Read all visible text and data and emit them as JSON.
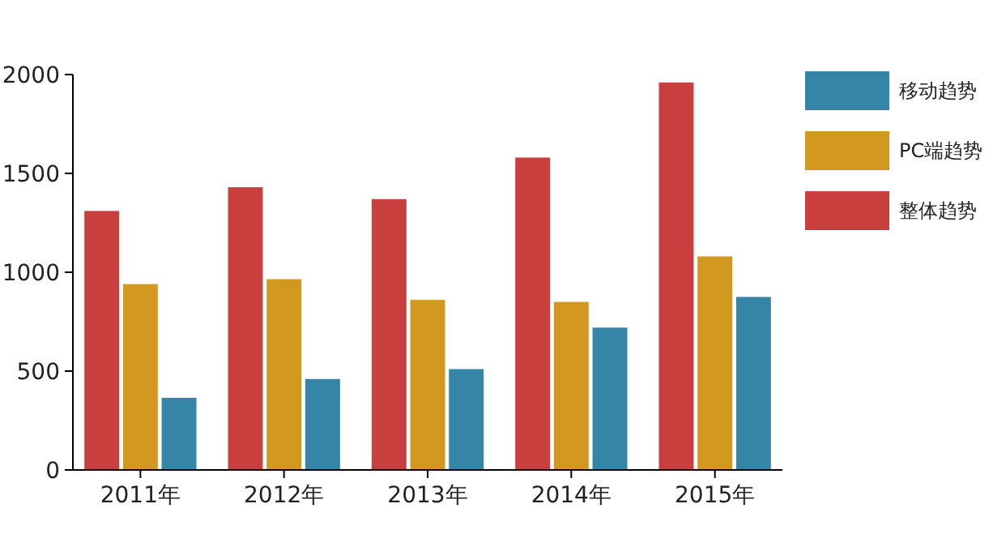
{
  "chart_data": {
    "type": "bar",
    "categories": [
      "2011年",
      "2012年",
      "2013年",
      "2014年",
      "2015年"
    ],
    "series": [
      {
        "name": "整体趋势",
        "color": "#c83f3d",
        "values": [
          1310,
          1430,
          1370,
          1580,
          1960
        ]
      },
      {
        "name": "PC端趋势",
        "color": "#d3981f",
        "values": [
          940,
          965,
          860,
          850,
          1080
        ]
      },
      {
        "name": "移动趋势",
        "color": "#3585a9",
        "values": [
          365,
          460,
          510,
          720,
          875
        ]
      }
    ],
    "ylim": [
      0,
      2000
    ],
    "yticks": [
      0,
      500,
      1000,
      1500,
      2000
    ],
    "grid": false,
    "legend": "right"
  }
}
